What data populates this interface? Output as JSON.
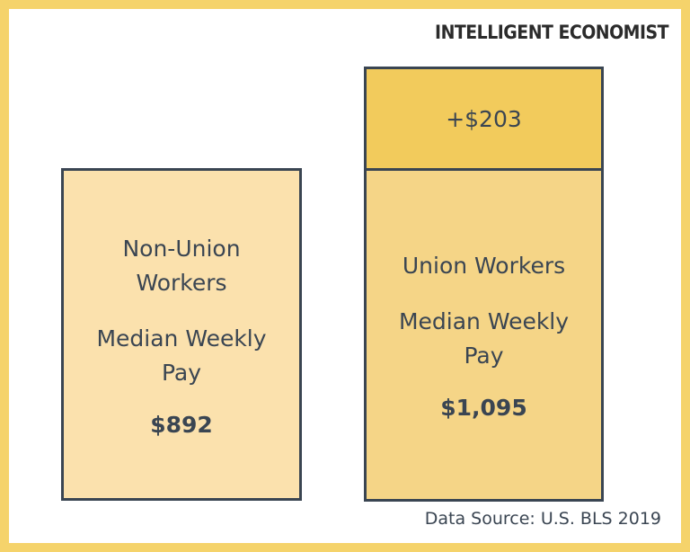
{
  "brand": "INTELLIGENT ECONOMIST",
  "chart_data": {
    "type": "bar",
    "categories": [
      "Non-Union Workers",
      "Union Workers"
    ],
    "values": [
      892,
      1095
    ],
    "non_union": {
      "label_line1": "Non-Union",
      "label_line2": "Workers",
      "metric_line1": "Median Weekly",
      "metric_line2": "Pay",
      "value_label": "$892"
    },
    "union": {
      "label_line1": "Union Workers",
      "metric_line1": "Median Weekly",
      "metric_line2": "Pay",
      "value_label": "$1,095",
      "increment_label": "+$203"
    }
  },
  "source": "Data Source: U.S. BLS 2019"
}
